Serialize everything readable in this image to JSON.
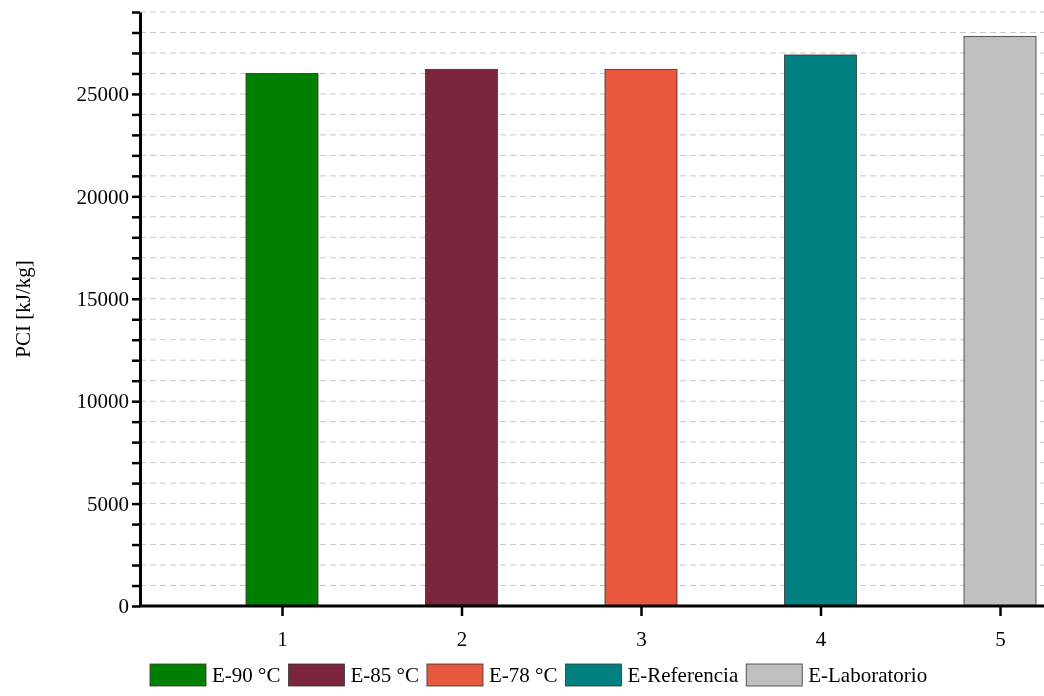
{
  "chart_data": {
    "type": "bar",
    "ylabel": "PCI [kJ/kg]",
    "categories": [
      "1",
      "2",
      "3",
      "4",
      "5"
    ],
    "stacked": true,
    "series": [
      {
        "name": "E-90 °C",
        "color": "#008000",
        "values": [
          26000,
          null,
          null,
          null,
          null
        ]
      },
      {
        "name": "E-85 °C",
        "color": "#7b263c",
        "values": [
          null,
          26200,
          null,
          null,
          null
        ]
      },
      {
        "name": "E-78 °C",
        "color": "#e8583c",
        "values": [
          null,
          null,
          26200,
          null,
          null
        ]
      },
      {
        "name": "E-Referencia",
        "color": "#008080",
        "values": [
          null,
          null,
          null,
          26900,
          null
        ]
      },
      {
        "name": "E-Laboratorio",
        "color": "#c0c0c0",
        "values": [
          null,
          null,
          null,
          null,
          27800
        ]
      }
    ],
    "ylim": [
      0,
      29000
    ],
    "yticks": [
      0,
      {
        "value": 1000,
        "label": null
      },
      {
        "value": 2000,
        "label": null
      },
      {
        "value": 3000,
        "label": null
      },
      {
        "value": 4000,
        "label": null
      },
      5000,
      {
        "value": 6000,
        "label": null
      },
      {
        "value": 7000,
        "label": null
      },
      {
        "value": 8000,
        "label": null
      },
      {
        "value": 9000,
        "label": null
      },
      10000,
      {
        "value": 11000,
        "label": null
      },
      {
        "value": 12000,
        "label": null
      },
      {
        "value": 13000,
        "label": null
      },
      {
        "value": 14000,
        "label": null
      },
      15000,
      {
        "value": 16000,
        "label": null
      },
      {
        "value": 17000,
        "label": null
      },
      {
        "value": 18000,
        "label": null
      },
      {
        "value": 19000,
        "label": null
      },
      20000,
      {
        "value": 21000,
        "label": null
      },
      {
        "value": 22000,
        "label": null
      },
      {
        "value": 23000,
        "label": null
      },
      {
        "value": 24000,
        "label": null
      },
      25000,
      {
        "value": 26000,
        "label": null
      },
      {
        "value": 27000,
        "label": null
      },
      {
        "value": 28000,
        "label": null
      },
      {
        "value": 29000,
        "label": null
      }
    ],
    "grid": "y",
    "legend": "bottom"
  }
}
